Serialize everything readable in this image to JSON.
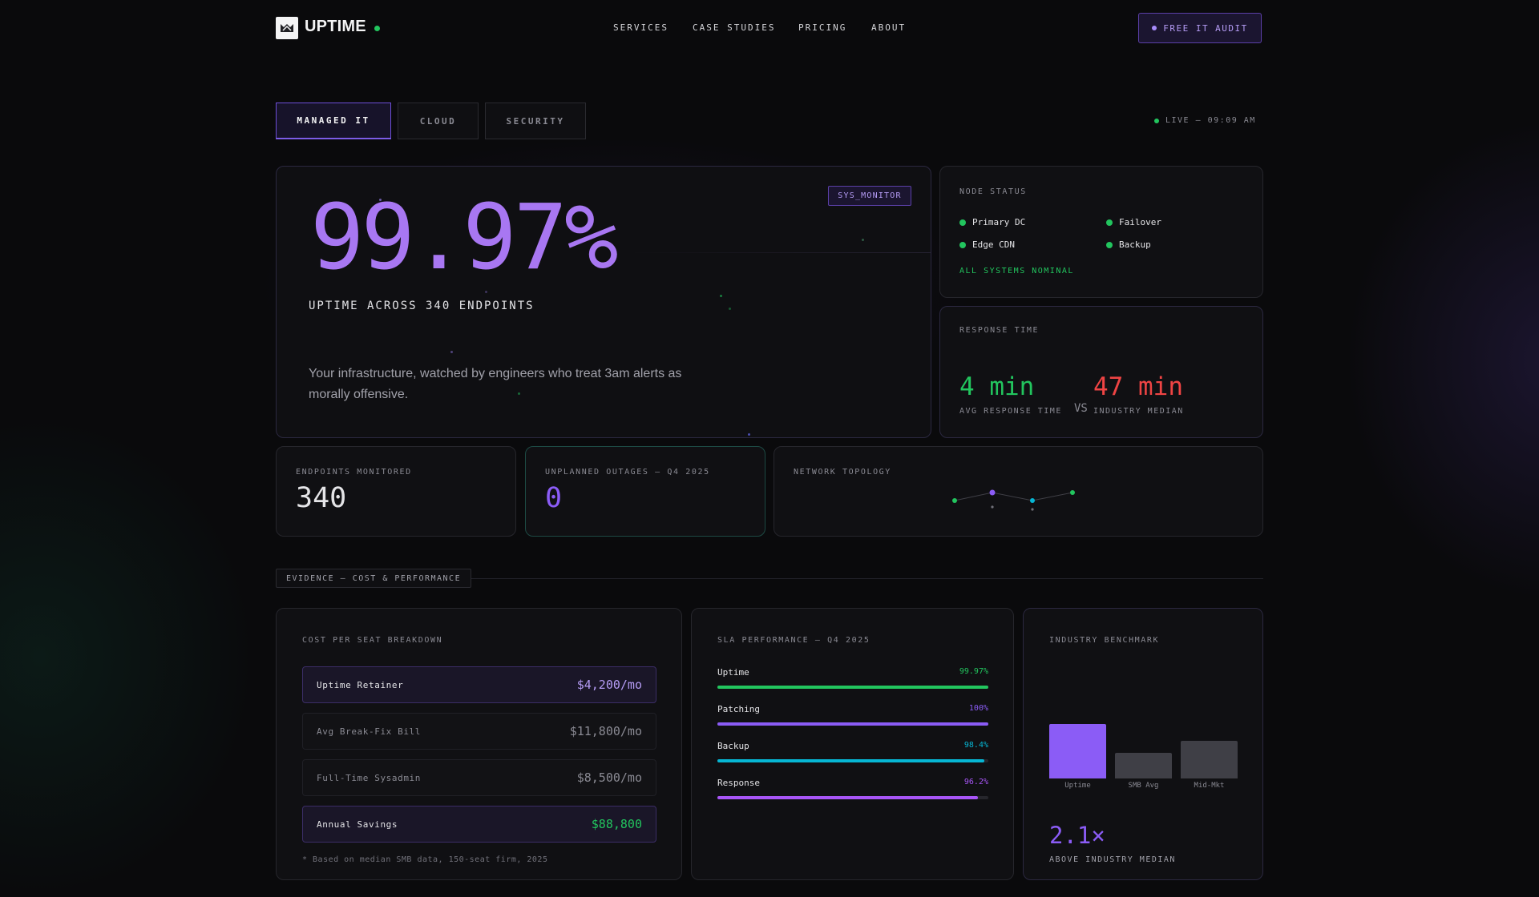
{
  "nav": {
    "brand": "UPTIME",
    "links": [
      "SERVICES",
      "CASE STUDIES",
      "PRICING",
      "ABOUT"
    ],
    "cta": "FREE IT AUDIT"
  },
  "tabs": [
    "MANAGED IT",
    "CLOUD",
    "SECURITY"
  ],
  "live": "LIVE — 09:09 AM",
  "hero": {
    "badge": "SYS_MONITOR",
    "value": "99.97%",
    "subtitle": "UPTIME ACROSS 340 ENDPOINTS",
    "description": "Your infrastructure, watched by engineers who treat 3am alerts as morally offensive."
  },
  "node_status": {
    "title": "NODE STATUS",
    "nodes": [
      "Primary DC",
      "Failover",
      "Edge CDN",
      "Backup"
    ],
    "summary": "ALL SYSTEMS NOMINAL",
    "status_color": "#22c55e"
  },
  "response": {
    "title": "RESPONSE TIME",
    "ours_value": "4 min",
    "ours_label": "AVG RESPONSE TIME",
    "vs": "VS",
    "industry_value": "47 min",
    "industry_label": "INDUSTRY MEDIAN"
  },
  "stats": {
    "endpoints_label": "ENDPOINTS MONITORED",
    "endpoints_value": "340",
    "outages_label": "UNPLANNED OUTAGES — Q4 2025",
    "outages_value": "0",
    "topology_label": "NETWORK TOPOLOGY"
  },
  "evidence_tag": "EVIDENCE — COST & PERFORMANCE",
  "cost": {
    "title": "COST PER SEAT BREAKDOWN",
    "rows": [
      {
        "name": "Uptime Retainer",
        "value": "$4,200/mo"
      },
      {
        "name": "Avg Break-Fix Bill",
        "value": "$11,800/mo"
      },
      {
        "name": "Full-Time Sysadmin",
        "value": "$8,500/mo"
      },
      {
        "name": "Annual Savings",
        "value": "$88,800"
      }
    ],
    "footnote": "* Based on median SMB data, 150-seat firm, 2025"
  },
  "sla": {
    "title": "SLA PERFORMANCE — Q4 2025",
    "rows": [
      {
        "name": "Uptime",
        "pct": "99.97%",
        "value": 99.97,
        "color": "#22c55e"
      },
      {
        "name": "Patching",
        "pct": "100%",
        "value": 100,
        "color": "#8b5cf6"
      },
      {
        "name": "Backup",
        "pct": "98.4%",
        "value": 98.4,
        "color": "#06b6d4"
      },
      {
        "name": "Response",
        "pct": "96.2%",
        "value": 96.2,
        "color": "#a855f7"
      }
    ]
  },
  "benchmark": {
    "title": "INDUSTRY BENCHMARK",
    "bars": [
      {
        "label": "Uptime",
        "value": 2.1,
        "color": "#8b5cf6"
      },
      {
        "label": "SMB Avg",
        "value": 1.0,
        "color": "#3f3f46"
      },
      {
        "label": "Mid-Mkt",
        "value": 1.45,
        "color": "#3f3f46"
      }
    ],
    "multiplier": "2.1×",
    "caption": "ABOVE INDUSTRY MEDIAN"
  },
  "colors": {
    "accent": "#a877f2",
    "success": "#22c55e",
    "danger": "#ef4444",
    "background": "#0a0a0c"
  }
}
